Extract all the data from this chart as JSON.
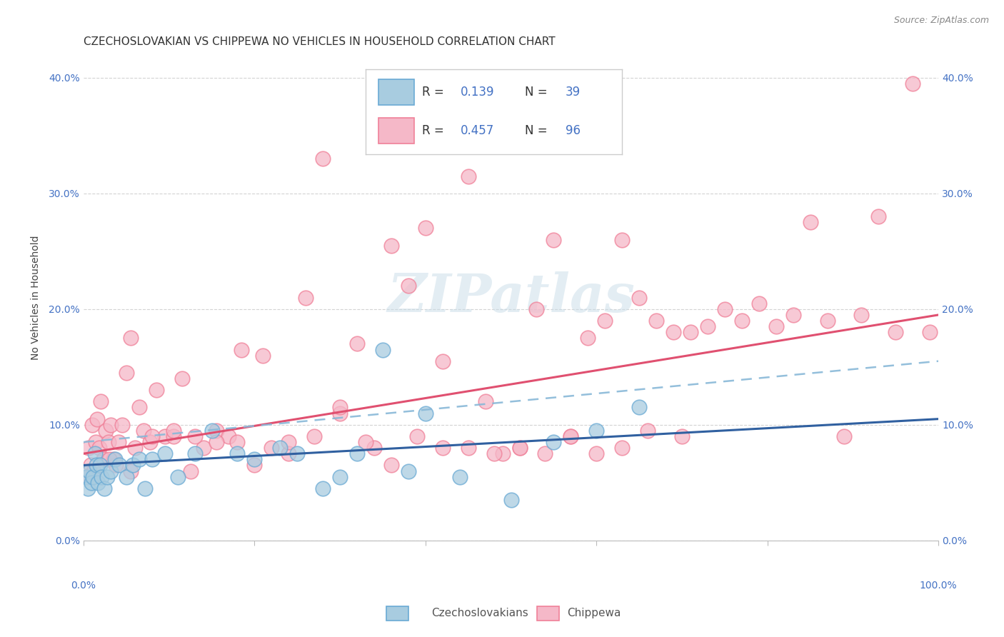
{
  "title": "CZECHOSLOVAKIAN VS CHIPPEWA NO VEHICLES IN HOUSEHOLD CORRELATION CHART",
  "source": "Source: ZipAtlas.com",
  "ylabel": "No Vehicles in Household",
  "xlim": [
    0,
    100
  ],
  "ylim": [
    0,
    42
  ],
  "yticks": [
    0,
    10,
    20,
    30,
    40
  ],
  "ytick_labels": [
    "0.0%",
    "10.0%",
    "20.0%",
    "30.0%",
    "40.0%"
  ],
  "background_color": "#ffffff",
  "plot_background": "#ffffff",
  "grid_color": "#c8c8c8",
  "blue_scatter_fill": "#a8cce0",
  "blue_scatter_edge": "#6aaad4",
  "pink_scatter_fill": "#f5b8c8",
  "pink_scatter_edge": "#f08098",
  "blue_line_color": "#3060a0",
  "pink_line_color": "#e05070",
  "dash_line_color": "#88b8d8",
  "tick_color": "#4472c4",
  "label_color": "#444444",
  "source_color": "#888888",
  "watermark_color": "#c8dce8",
  "blue_reg_x0": 0,
  "blue_reg_y0": 6.5,
  "blue_reg_x1": 100,
  "blue_reg_y1": 10.5,
  "pink_reg_x0": 0,
  "pink_reg_y0": 7.5,
  "pink_reg_x1": 100,
  "pink_reg_y1": 19.5,
  "dash_reg_x0": 0,
  "dash_reg_y0": 8.5,
  "dash_reg_x1": 100,
  "dash_reg_y1": 15.5,
  "blue_x": [
    0.3,
    0.5,
    0.7,
    0.9,
    1.1,
    1.3,
    1.5,
    1.7,
    1.9,
    2.1,
    2.4,
    2.8,
    3.2,
    3.7,
    4.2,
    5.0,
    5.8,
    6.5,
    7.2,
    8.0,
    9.5,
    11.0,
    13.0,
    15.0,
    18.0,
    20.0,
    23.0,
    25.0,
    28.0,
    30.0,
    32.0,
    35.0,
    38.0,
    40.0,
    44.0,
    50.0,
    55.0,
    60.0,
    65.0
  ],
  "blue_y": [
    5.5,
    4.5,
    6.0,
    5.0,
    5.5,
    7.5,
    6.5,
    5.0,
    6.5,
    5.5,
    4.5,
    5.5,
    6.0,
    7.0,
    6.5,
    5.5,
    6.5,
    7.0,
    4.5,
    7.0,
    7.5,
    5.5,
    7.5,
    9.5,
    7.5,
    7.0,
    8.0,
    7.5,
    4.5,
    5.5,
    7.5,
    16.5,
    6.0,
    11.0,
    5.5,
    3.5,
    8.5,
    9.5,
    11.5
  ],
  "pink_x": [
    0.4,
    0.6,
    0.8,
    1.0,
    1.2,
    1.4,
    1.6,
    1.8,
    2.0,
    2.3,
    2.6,
    2.9,
    3.2,
    3.5,
    3.8,
    4.1,
    4.5,
    5.0,
    5.5,
    6.0,
    6.5,
    7.0,
    7.8,
    8.5,
    9.5,
    10.5,
    11.5,
    12.5,
    14.0,
    15.5,
    17.0,
    18.5,
    20.0,
    22.0,
    24.0,
    26.0,
    28.0,
    30.0,
    32.0,
    34.0,
    36.0,
    38.0,
    40.0,
    42.0,
    45.0,
    47.0,
    49.0,
    51.0,
    53.0,
    55.0,
    57.0,
    59.0,
    61.0,
    63.0,
    65.0,
    67.0,
    69.0,
    71.0,
    73.0,
    75.0,
    77.0,
    79.0,
    81.0,
    83.0,
    85.0,
    87.0,
    89.0,
    91.0,
    93.0,
    95.0,
    97.0,
    99.0,
    3.0,
    5.5,
    8.0,
    10.5,
    13.0,
    15.5,
    18.0,
    21.0,
    24.0,
    27.0,
    30.0,
    33.0,
    36.0,
    39.0,
    42.0,
    45.0,
    48.0,
    51.0,
    54.0,
    57.0,
    60.0,
    63.0,
    66.0,
    70.0
  ],
  "pink_y": [
    5.5,
    8.0,
    6.5,
    10.0,
    6.0,
    8.5,
    10.5,
    8.0,
    12.0,
    7.0,
    9.5,
    8.5,
    10.0,
    7.0,
    6.5,
    8.5,
    10.0,
    14.5,
    17.5,
    8.0,
    11.5,
    9.5,
    8.5,
    13.0,
    9.0,
    9.0,
    14.0,
    6.0,
    8.0,
    9.5,
    9.0,
    16.5,
    6.5,
    8.0,
    7.5,
    21.0,
    33.0,
    11.0,
    17.0,
    8.0,
    25.5,
    22.0,
    27.0,
    15.5,
    31.5,
    12.0,
    7.5,
    8.0,
    20.0,
    26.0,
    9.0,
    17.5,
    19.0,
    26.0,
    21.0,
    19.0,
    18.0,
    18.0,
    18.5,
    20.0,
    19.0,
    20.5,
    18.5,
    19.5,
    27.5,
    19.0,
    9.0,
    19.5,
    28.0,
    18.0,
    39.5,
    18.0,
    7.0,
    6.0,
    9.0,
    9.5,
    9.0,
    8.5,
    8.5,
    16.0,
    8.5,
    9.0,
    11.5,
    8.5,
    6.5,
    9.0,
    8.0,
    8.0,
    7.5,
    8.0,
    7.5,
    9.0,
    7.5,
    8.0,
    9.5,
    9.0
  ],
  "title_fontsize": 11,
  "source_fontsize": 9,
  "ylabel_fontsize": 10,
  "tick_fontsize": 10,
  "legend_fontsize": 12
}
